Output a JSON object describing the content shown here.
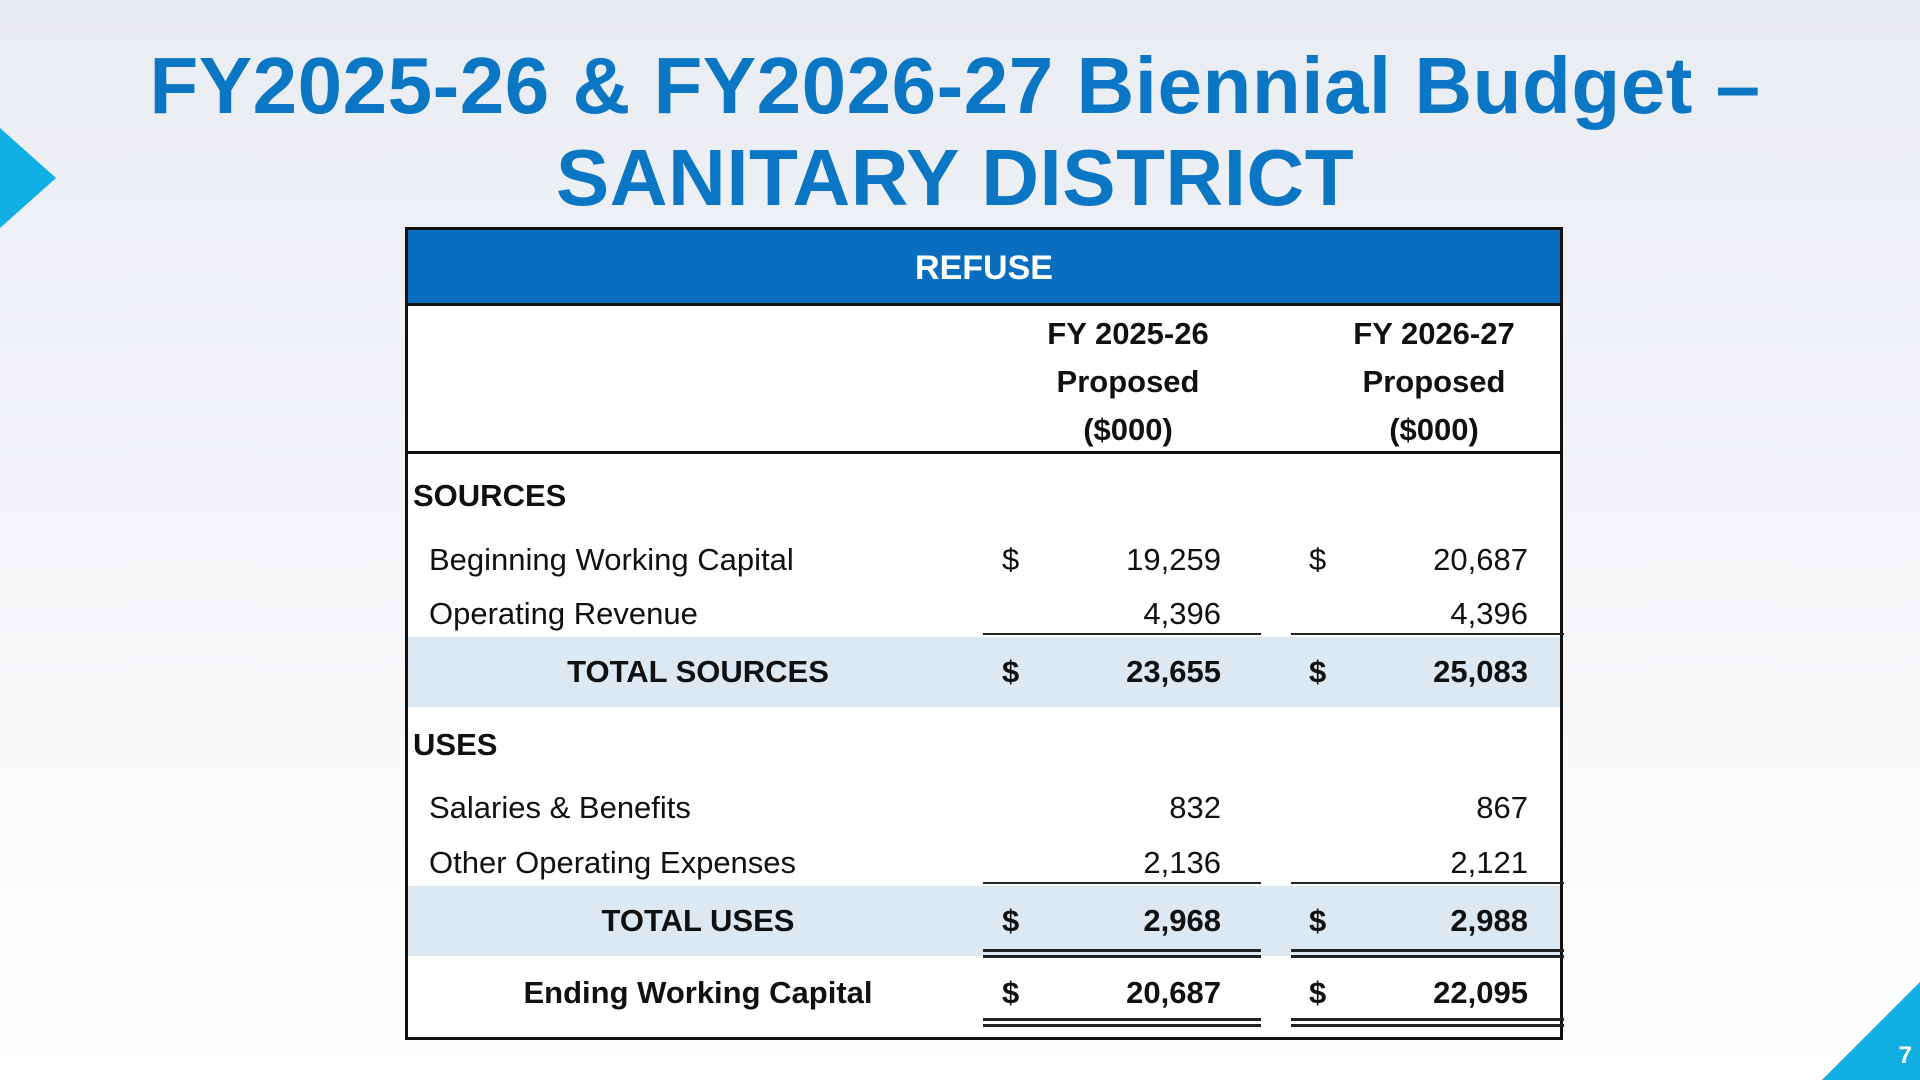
{
  "title": {
    "line1": "FY2025-26 & FY2026-27 Biennial Budget –",
    "line2": "SANITARY DISTRICT"
  },
  "page_number": "7",
  "table": {
    "header": "REFUSE",
    "columns": [
      {
        "line1": "FY 2025-26",
        "line2": "Proposed",
        "line3": "($000)"
      },
      {
        "line1": "FY 2026-27",
        "line2": "Proposed",
        "line3": "($000)"
      }
    ],
    "sources_label": "SOURCES",
    "beginning_working_capital": {
      "label": "Beginning Working Capital",
      "dollar": "$",
      "fy1": "19,259",
      "fy2": "20,687"
    },
    "operating_revenue": {
      "label": "Operating Revenue",
      "fy1": "4,396",
      "fy2": "4,396"
    },
    "total_sources": {
      "label": "TOTAL SOURCES",
      "dollar": "$",
      "fy1": "23,655",
      "fy2": "25,083"
    },
    "uses_label": "USES",
    "salaries_benefits": {
      "label": "Salaries & Benefits",
      "fy1": "832",
      "fy2": "867"
    },
    "other_operating_expenses": {
      "label": "Other Operating Expenses",
      "fy1": "2,136",
      "fy2": "2,121"
    },
    "total_uses": {
      "label": "TOTAL USES",
      "dollar": "$",
      "fy1": "2,968",
      "fy2": "2,988"
    },
    "ending_working_capital": {
      "label": "Ending Working Capital",
      "dollar": "$",
      "fy1": "20,687",
      "fy2": "22,095"
    }
  },
  "colors": {
    "title": "#0b76c3",
    "header_bg": "#0a6ec0",
    "band": "#dce8f2",
    "accent": "#10aee3"
  }
}
